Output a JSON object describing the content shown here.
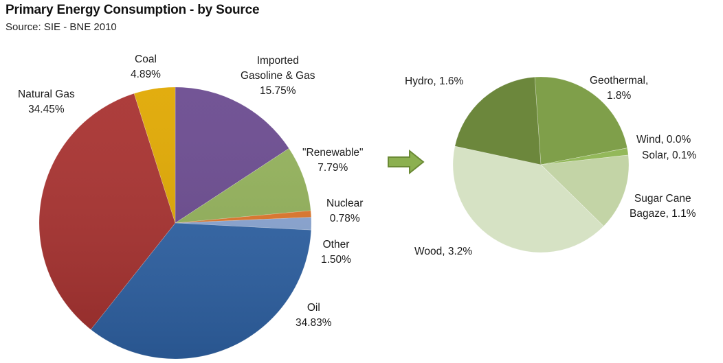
{
  "header": {
    "title": "Primary Energy Consumption  - by Source",
    "subtitle": "Source: SIE - BNE 2010"
  },
  "labels": {
    "coal": [
      "Coal",
      "4.89%"
    ],
    "imported": [
      "Imported",
      "Gasoline & Gas",
      "15.75%"
    ],
    "natural_gas": [
      "Natural Gas",
      "34.45%"
    ],
    "renewable": [
      "\"Renewable\"",
      "7.79%"
    ],
    "nuclear": [
      "Nuclear",
      "0.78%"
    ],
    "other": [
      "Other",
      "1.50%"
    ],
    "oil": [
      "Oil",
      "34.83%"
    ],
    "hydro": "Hydro, 1.6%",
    "geothermal": [
      "Geothermal,",
      "1.8%"
    ],
    "wind": "Wind, 0.0%",
    "solar": "Solar, 0.1%",
    "sugar_cane": [
      "Sugar Cane",
      "Bagaze, 1.1%"
    ],
    "wood": "Wood, 3.2%"
  },
  "chart_data": [
    {
      "type": "pie",
      "title": "Primary Energy Consumption - by Source",
      "subtitle": "Source: SIE - BNE 2010",
      "categories": [
        "Imported Gasoline & Gas",
        "\"Renewable\"",
        "Nuclear",
        "Other",
        "Oil",
        "Natural Gas",
        "Coal"
      ],
      "values": [
        15.75,
        7.79,
        0.78,
        1.5,
        34.83,
        34.45,
        4.89
      ],
      "unit": "%",
      "colors": [
        "#6a4a8f",
        "#93b25a",
        "#e0762a",
        "#8aa6d4",
        "#2f63a6",
        "#a8312f",
        "#e0a800"
      ],
      "start_angle_deg": 0,
      "direction": "clockwise"
    },
    {
      "type": "pie",
      "title": "\"Renewable\" breakdown",
      "categories": [
        "Geothermal",
        "Wind",
        "Solar",
        "Sugar Cane Bagaze",
        "Wood",
        "Hydro"
      ],
      "values": [
        1.8,
        0.0,
        0.1,
        1.1,
        3.2,
        1.6
      ],
      "unit": "%",
      "colors": [
        "#7f9f4a",
        "#8fb356",
        "#93b85a",
        "#c3d4a6",
        "#d6e2c4",
        "#6c873c"
      ],
      "start_angle_deg": -4,
      "direction": "clockwise"
    }
  ],
  "arrow": {
    "color": "#8cb050",
    "border": "#6b8a35",
    "direction": "right"
  }
}
